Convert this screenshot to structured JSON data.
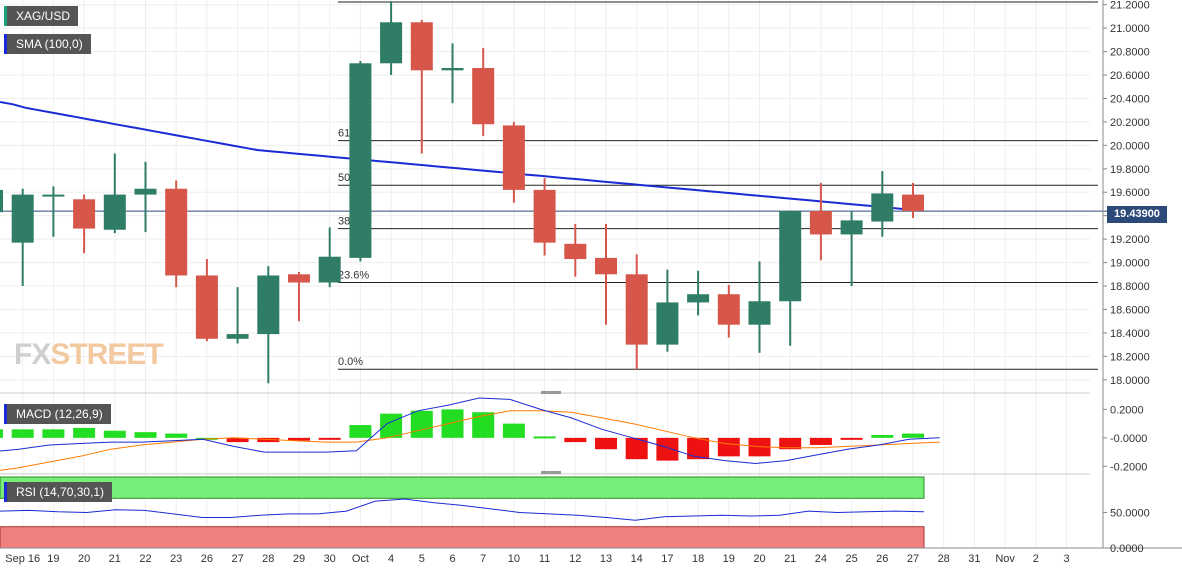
{
  "header": {
    "symbol": "XAG/USD",
    "sma_label": "SMA (100,0)"
  },
  "last_price": "19.43900",
  "watermark": {
    "part1": "FX",
    "part2": "STREET"
  },
  "colors": {
    "bull": "#2f7d67",
    "bear": "#d6574a",
    "sma": "#1a2bd6",
    "macd_pos": "#22dd22",
    "macd_neg": "#ee1111",
    "rsi_over": "#77ee77",
    "rsi_under": "#f08080"
  },
  "chart_data": [
    {
      "type": "candlestick",
      "title": "XAG/USD",
      "x_tick_labels": [
        "Sep 16",
        "19",
        "20",
        "21",
        "22",
        "23",
        "26",
        "27",
        "28",
        "29",
        "30",
        "Oct",
        "4",
        "5",
        "6",
        "7",
        "10",
        "11",
        "12",
        "13",
        "14",
        "17",
        "18",
        "19",
        "20",
        "21",
        "24",
        "25",
        "26",
        "27",
        "28",
        "31",
        "Nov",
        "2",
        "3"
      ],
      "ylim": [
        17.93,
        21.24
      ],
      "y_ticks": [
        "18.0000",
        "18.2000",
        "18.4000",
        "18.6000",
        "18.8000",
        "19.0000",
        "19.2000",
        "19.4000",
        "19.6000",
        "19.8000",
        "20.0000",
        "20.2000",
        "20.4000",
        "20.6000",
        "20.8000",
        "21.0000",
        "21.2000"
      ],
      "candles": [
        {
          "date": "Sep 15",
          "open": 19.43,
          "high": 19.65,
          "low": 19.12,
          "close": 19.62
        },
        {
          "date": "Sep 16",
          "open": 19.17,
          "high": 19.63,
          "low": 18.8,
          "close": 19.58
        },
        {
          "date": "Sep 19",
          "open": 19.57,
          "high": 19.65,
          "low": 19.22,
          "close": 19.58
        },
        {
          "date": "Sep 20",
          "open": 19.54,
          "high": 19.58,
          "low": 19.08,
          "close": 19.29
        },
        {
          "date": "Sep 21",
          "open": 19.28,
          "high": 19.93,
          "low": 19.25,
          "close": 19.58
        },
        {
          "date": "Sep 22",
          "open": 19.58,
          "high": 19.86,
          "low": 19.26,
          "close": 19.63
        },
        {
          "date": "Sep 23",
          "open": 19.63,
          "high": 19.7,
          "low": 18.79,
          "close": 18.89
        },
        {
          "date": "Sep 26",
          "open": 18.89,
          "high": 19.03,
          "low": 18.33,
          "close": 18.35
        },
        {
          "date": "Sep 27",
          "open": 18.35,
          "high": 18.79,
          "low": 18.31,
          "close": 18.39
        },
        {
          "date": "Sep 28",
          "open": 18.39,
          "high": 18.97,
          "low": 17.97,
          "close": 18.89
        },
        {
          "date": "Sep 29",
          "open": 18.9,
          "high": 18.92,
          "low": 18.5,
          "close": 18.83
        },
        {
          "date": "Sep 30",
          "open": 18.83,
          "high": 19.3,
          "low": 18.79,
          "close": 19.05
        },
        {
          "date": "Oct 3",
          "open": 19.04,
          "high": 20.72,
          "low": 19.01,
          "close": 20.7
        },
        {
          "date": "Oct 4",
          "open": 20.7,
          "high": 21.23,
          "low": 20.6,
          "close": 21.05
        },
        {
          "date": "Oct 5",
          "open": 21.05,
          "high": 21.07,
          "low": 19.93,
          "close": 20.64
        },
        {
          "date": "Oct 6",
          "open": 20.64,
          "high": 20.87,
          "low": 20.36,
          "close": 20.66
        },
        {
          "date": "Oct 7",
          "open": 20.66,
          "high": 20.83,
          "low": 20.08,
          "close": 20.18
        },
        {
          "date": "Oct 10",
          "open": 20.17,
          "high": 20.2,
          "low": 19.51,
          "close": 19.62
        },
        {
          "date": "Oct 11",
          "open": 19.62,
          "high": 19.72,
          "low": 19.06,
          "close": 19.17
        },
        {
          "date": "Oct 12",
          "open": 19.16,
          "high": 19.33,
          "low": 18.88,
          "close": 19.03
        },
        {
          "date": "Oct 13",
          "open": 19.04,
          "high": 19.33,
          "low": 18.47,
          "close": 18.9
        },
        {
          "date": "Oct 14",
          "open": 18.9,
          "high": 19.07,
          "low": 18.09,
          "close": 18.3
        },
        {
          "date": "Oct 17",
          "open": 18.3,
          "high": 18.94,
          "low": 18.24,
          "close": 18.66
        },
        {
          "date": "Oct 18",
          "open": 18.66,
          "high": 18.93,
          "low": 18.55,
          "close": 18.73
        },
        {
          "date": "Oct 19",
          "open": 18.73,
          "high": 18.81,
          "low": 18.36,
          "close": 18.47
        },
        {
          "date": "Oct 20",
          "open": 18.47,
          "high": 19.01,
          "low": 18.23,
          "close": 18.67
        },
        {
          "date": "Oct 21",
          "open": 18.67,
          "high": 19.44,
          "low": 18.29,
          "close": 19.44
        },
        {
          "date": "Oct 24",
          "open": 19.44,
          "high": 19.68,
          "low": 19.02,
          "close": 19.24
        },
        {
          "date": "Oct 25",
          "open": 19.24,
          "high": 19.44,
          "low": 18.8,
          "close": 19.36
        },
        {
          "date": "Oct 26",
          "open": 19.35,
          "high": 19.78,
          "low": 19.22,
          "close": 19.59
        },
        {
          "date": "Oct 27",
          "open": 19.58,
          "high": 19.68,
          "low": 19.38,
          "close": 19.44
        }
      ],
      "sma_100": [
        19.98,
        19.96,
        19.93,
        19.91,
        19.89,
        19.87,
        19.85,
        19.83,
        19.81,
        19.79,
        19.77,
        19.75,
        19.73,
        19.71,
        19.69,
        19.67,
        19.65,
        19.63,
        19.61,
        19.59,
        19.57,
        19.56,
        19.55,
        19.54,
        19.53,
        19.52,
        19.51,
        19.5,
        19.49,
        19.48,
        19.47,
        19.46,
        19.45,
        19.44,
        19.43,
        19.42,
        19.41,
        19.4,
        19.39,
        19.38,
        19.37,
        19.36,
        19.35,
        19.34,
        19.33,
        19.32,
        19.31,
        19.3,
        19.29,
        19.28,
        19.27,
        19.26,
        19.25,
        19.24,
        19.23,
        19.22,
        19.21,
        19.2,
        19.19,
        19.18,
        19.17,
        19.16,
        19.15,
        19.14,
        19.13,
        19.12,
        19.11,
        19.1,
        19.09,
        19.08,
        19.07,
        19.06
      ],
      "fibonacci": [
        {
          "label": "61.8%",
          "level": 20.04
        },
        {
          "label": "50.0%",
          "level": 19.66
        },
        {
          "label": "38.2%",
          "level": 19.29
        },
        {
          "label": "23.6%",
          "level": 18.83
        },
        {
          "label": "0.0%",
          "level": 18.09
        }
      ],
      "last_price_line": 19.439
    },
    {
      "type": "macd",
      "title": "MACD (12,26,9)",
      "ylim": [
        -0.24,
        0.28
      ],
      "y_ticks": [
        "0.2000",
        "-0.0000",
        "-0.2000"
      ],
      "histogram": [
        0.06,
        0.06,
        0.06,
        0.07,
        0.05,
        0.04,
        0.03,
        0.0,
        -0.03,
        -0.03,
        -0.02,
        -0.01,
        0.09,
        0.17,
        0.19,
        0.2,
        0.18,
        0.1,
        0.01,
        -0.03,
        -0.08,
        -0.15,
        -0.16,
        -0.15,
        -0.13,
        -0.13,
        -0.08,
        -0.05,
        -0.01,
        0.02,
        0.03
      ],
      "macd_line": [
        -0.1,
        -0.08,
        -0.05,
        -0.04,
        -0.03,
        -0.03,
        -0.02,
        -0.01,
        -0.06,
        -0.1,
        -0.1,
        -0.1,
        -0.09,
        0.1,
        0.19,
        0.23,
        0.28,
        0.27,
        0.2,
        0.14,
        0.06,
        0.0,
        -0.06,
        -0.13,
        -0.16,
        -0.18,
        -0.16,
        -0.12,
        -0.08,
        -0.05,
        -0.01,
        0.0
      ],
      "signal_line": [
        -0.24,
        -0.21,
        -0.17,
        -0.13,
        -0.08,
        -0.05,
        -0.03,
        -0.01,
        0.0,
        -0.01,
        -0.02,
        -0.03,
        -0.03,
        0.0,
        0.05,
        0.1,
        0.15,
        0.19,
        0.19,
        0.18,
        0.14,
        0.1,
        0.05,
        0.0,
        -0.04,
        -0.06,
        -0.07,
        -0.07,
        -0.06,
        -0.05,
        -0.04,
        -0.03
      ]
    },
    {
      "type": "rsi",
      "title": "RSI (14,70,30,1)",
      "ylim": [
        0,
        100
      ],
      "y_ticks": [
        "50.0000",
        "0.0000"
      ],
      "overbought": 70,
      "oversold": 30,
      "rsi": [
        52,
        53,
        51,
        50,
        54,
        53,
        48,
        43,
        43,
        46,
        48,
        48,
        52,
        66,
        69,
        64,
        60,
        55,
        50,
        48,
        46,
        43,
        39,
        44,
        45,
        46,
        45,
        46,
        52,
        50,
        51,
        52,
        51
      ]
    }
  ]
}
